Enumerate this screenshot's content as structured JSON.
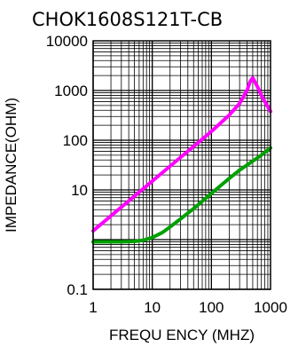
{
  "chart_data": {
    "type": "line",
    "title": "CHOK1608S121T-CB",
    "xlabel": "FREQU ENCY (MHZ)",
    "ylabel": "IMPEDANCE(OHM)",
    "x_scale": "log",
    "y_scale": "log",
    "xlim": [
      1,
      1000
    ],
    "ylim": [
      0.1,
      10000
    ],
    "x_ticks": [
      1,
      10,
      100,
      1000
    ],
    "x_tick_labels": [
      "1",
      "10",
      "100",
      "1000"
    ],
    "y_ticks": [
      0.1,
      10,
      100,
      1000,
      10000
    ],
    "y_tick_labels": [
      "0.1",
      "10",
      "100",
      "1000",
      "10000"
    ],
    "grid": true,
    "series": [
      {
        "color": "#ff00ff",
        "x": [
          1,
          2,
          5,
          10,
          20,
          50,
          100,
          200,
          300,
          400,
          450,
          500,
          600,
          700,
          800,
          1000
        ],
        "y": [
          1.5,
          3,
          7.5,
          15,
          30,
          75,
          150,
          320,
          550,
          1000,
          1500,
          1800,
          1200,
          800,
          600,
          380
        ]
      },
      {
        "color": "#00a000",
        "x": [
          1,
          2,
          3,
          5,
          7,
          10,
          15,
          20,
          30,
          50,
          100,
          200,
          300,
          500,
          700,
          1000
        ],
        "y": [
          0.9,
          0.9,
          0.9,
          0.92,
          0.97,
          1.1,
          1.4,
          1.8,
          2.6,
          4.2,
          8.5,
          17,
          25,
          38,
          50,
          70
        ]
      }
    ]
  }
}
